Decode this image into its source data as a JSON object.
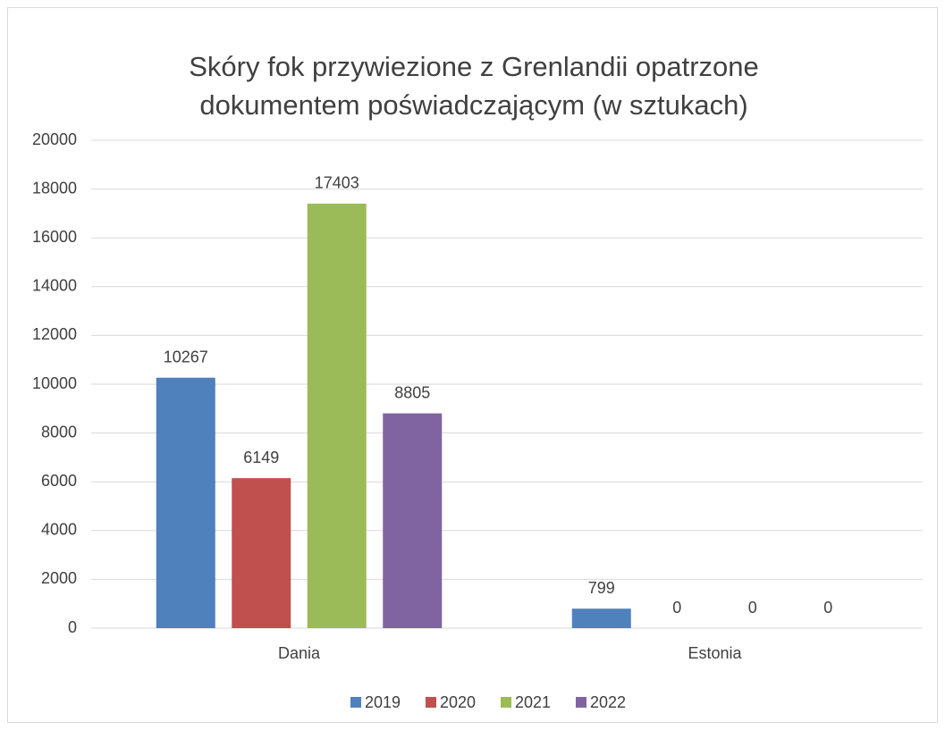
{
  "chart_data": {
    "type": "bar",
    "title": [
      "Skóry fok przywiezione z Grenlandii opatrzone",
      "dokumentem poświadczającym (w sztukach)"
    ],
    "categories": [
      "Dania",
      "Estonia"
    ],
    "series": [
      {
        "name": "2019",
        "color": "#4f81bd",
        "values": [
          10267,
          799
        ]
      },
      {
        "name": "2020",
        "color": "#c0504d",
        "values": [
          6149,
          0
        ]
      },
      {
        "name": "2021",
        "color": "#9bbb59",
        "values": [
          17403,
          0
        ]
      },
      {
        "name": "2022",
        "color": "#8064a2",
        "values": [
          8805,
          0
        ]
      }
    ],
    "ylim": [
      0,
      20000
    ],
    "yticks": [
      0,
      2000,
      4000,
      6000,
      8000,
      10000,
      12000,
      14000,
      16000,
      18000,
      20000
    ],
    "grid": true,
    "legend": "bottom"
  }
}
